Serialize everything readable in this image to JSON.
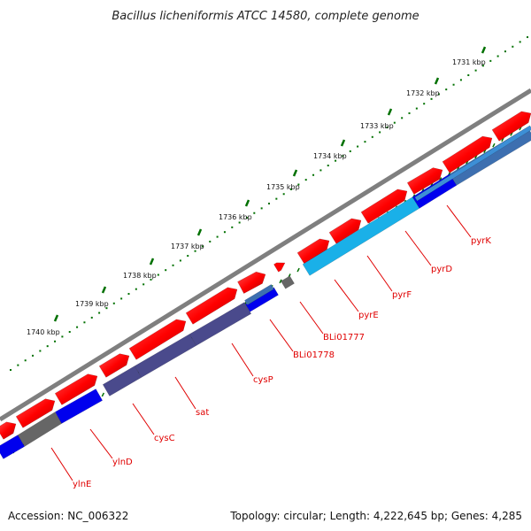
{
  "title": "Bacillus licheniformis ATCC 14580, complete genome",
  "accession": "Accession: NC_006322",
  "summary": "Topology: circular; Length: 4,222,645 bp; Genes: 4,285",
  "colors": {
    "backbone": "#7f7f7f",
    "forward_cds": "#ff0000",
    "reverse_cds_dark": "#4a4a8c",
    "reverse_cds_blue": "#0000ee",
    "reverse_cds_cyan": "#1ab0e8",
    "reverse_cds_steel": "#3d6fb0",
    "gray_feature": "#666666",
    "tick_major": "#007000",
    "label": "#e00000"
  },
  "scale_labels": [
    "1731 kbp",
    "1732 kbp",
    "1733 kbp",
    "1734 kbp",
    "1735 kbp",
    "1736 kbp",
    "1737 kbp",
    "1738 kbp",
    "1739 kbp",
    "1740 kbp"
  ],
  "gene_labels": [
    "pyrK",
    "pyrD",
    "pyrF",
    "pyrE",
    "BLi01777",
    "BLi01778",
    "cysP",
    "sat",
    "cysC",
    "ylnD",
    "ylnE"
  ]
}
